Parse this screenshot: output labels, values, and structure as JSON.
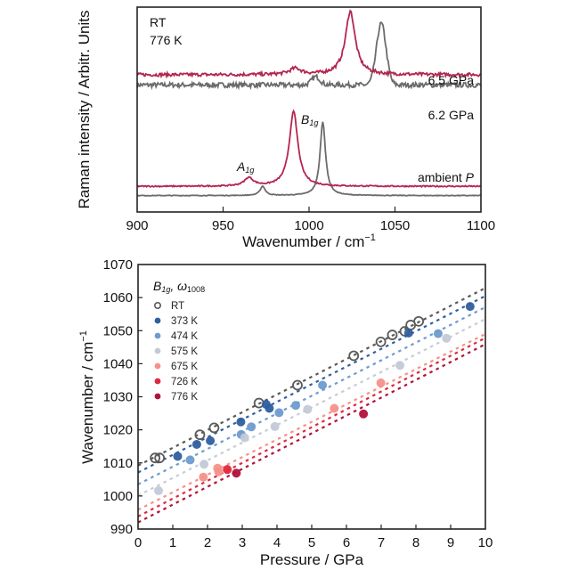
{
  "chart_data": [
    {
      "type": "line",
      "title": "",
      "xlabel": "Wavenumber / cm",
      "xlabel_sup": "−1",
      "ylabel": "Raman intensity / Arbitr. Units",
      "xlim": [
        900,
        1100
      ],
      "xticks": [
        900,
        950,
        1000,
        1050,
        1100
      ],
      "grid": false,
      "legend": {
        "placement": "top-left",
        "entries": [
          {
            "label": "RT",
            "color": "#6b6b6b"
          },
          {
            "label": "776 K",
            "color": "#b3264f"
          }
        ]
      },
      "colors": {
        "RT": "#6b6b6b",
        "hot": "#b3264f"
      },
      "series": [
        {
          "name": "RT, 6.2 GPa",
          "color_key": "RT",
          "offset": 0.62,
          "noise": 0.012,
          "peaks": [
            {
              "center": 1042,
              "height": 0.3,
              "width": 2.8,
              "shape": "gauss"
            },
            {
              "center": 1004,
              "height": 0.04,
              "width": 2.5,
              "shape": "gauss"
            }
          ]
        },
        {
          "name": "776 K, 6.5 GPa",
          "color_key": "hot",
          "offset": 0.67,
          "noise": 0.008,
          "peaks": [
            {
              "center": 1024,
              "height": 0.31,
              "width": 3.4,
              "shape": "lorentz"
            },
            {
              "center": 992,
              "height": 0.03,
              "width": 4.0,
              "shape": "lorentz"
            }
          ]
        },
        {
          "name": "RT, ambient P",
          "color_key": "RT",
          "offset": 0.08,
          "noise": 0.0015,
          "peaks": [
            {
              "center": 1008,
              "height": 0.36,
              "width": 1.9,
              "shape": "lorentz"
            },
            {
              "center": 973,
              "height": 0.045,
              "width": 1.8,
              "shape": "lorentz"
            }
          ]
        },
        {
          "name": "776 K, ambient P",
          "color_key": "hot",
          "offset": 0.125,
          "noise": 0.003,
          "peaks": [
            {
              "center": 991,
              "height": 0.365,
              "width": 3.0,
              "shape": "lorentz"
            },
            {
              "center": 965,
              "height": 0.04,
              "width": 3.2,
              "shape": "lorentz"
            }
          ]
        }
      ],
      "annotations": [
        {
          "text": "6.5 GPa",
          "color_key": "hot"
        },
        {
          "text": "6.2 GPa",
          "color_key": "RT"
        },
        {
          "text": "ambient ",
          "italic_suffix": "P",
          "color": "#111111"
        },
        {
          "mode": "A",
          "sub": "1g"
        },
        {
          "mode": "B",
          "sub": "1g"
        }
      ]
    },
    {
      "type": "scatter",
      "title": "",
      "xlabel": "Pressure / GPa",
      "ylabel": "Wavenumber / cm",
      "ylabel_sup": "−1",
      "xlim": [
        0,
        10
      ],
      "ylim": [
        990,
        1070
      ],
      "xticks": [
        0,
        1,
        2,
        3,
        4,
        5,
        6,
        7,
        8,
        9,
        10
      ],
      "yticks": [
        990,
        1000,
        1010,
        1020,
        1030,
        1040,
        1050,
        1060,
        1070
      ],
      "grid": false,
      "legend": {
        "placement": "top-left",
        "title_mode": "B",
        "title_sub": "1g",
        "title_suffix": ", ω",
        "title_suffix_sub": "1008"
      },
      "series": [
        {
          "name": "RT",
          "color": "#5a5a5a",
          "open": true,
          "fit": [
            1009.2,
            1062.9
          ],
          "points": [
            [
              0.49,
              1011.5
            ],
            [
              0.62,
              1011.5
            ],
            [
              1.78,
              1018.5
            ],
            [
              2.19,
              1020.6
            ],
            [
              3.48,
              1028.1
            ],
            [
              4.59,
              1033.5
            ],
            [
              6.21,
              1042.4
            ],
            [
              6.99,
              1046.6
            ],
            [
              7.32,
              1048.7
            ],
            [
              7.68,
              1049.8
            ],
            [
              7.85,
              1051.7
            ],
            [
              8.08,
              1052.8
            ]
          ]
        },
        {
          "name": "373 K",
          "color": "#2f5f9e",
          "open": false,
          "fit": [
            1007.1,
            1060.5
          ],
          "points": [
            [
              1.14,
              1012.0
            ],
            [
              1.69,
              1015.6
            ],
            [
              2.08,
              1016.7
            ],
            [
              2.96,
              1022.4
            ],
            [
              3.69,
              1027.7
            ],
            [
              3.78,
              1026.5
            ],
            [
              7.79,
              1049.3
            ],
            [
              9.56,
              1057.3
            ]
          ]
        },
        {
          "name": "474 K",
          "color": "#6f9bcf",
          "open": false,
          "fit": [
            1003.5,
            1057.1
          ],
          "points": [
            [
              1.5,
              1010.9
            ],
            [
              2.97,
              1018.6
            ],
            [
              3.26,
              1020.9
            ],
            [
              4.06,
              1025.2
            ],
            [
              4.54,
              1027.4
            ],
            [
              5.31,
              1033.5
            ],
            [
              8.64,
              1049.1
            ]
          ]
        },
        {
          "name": "575 K",
          "color": "#c3c9d6",
          "open": false,
          "fit": [
            1000.1,
            1053.5
          ],
          "points": [
            [
              0.59,
              1001.6
            ],
            [
              1.9,
              1009.6
            ],
            [
              3.07,
              1017.6
            ],
            [
              3.94,
              1021.0
            ],
            [
              4.88,
              1026.2
            ],
            [
              7.54,
              1039.5
            ],
            [
              8.88,
              1047.7
            ]
          ]
        },
        {
          "name": "675 K",
          "color": "#f4928a",
          "open": false,
          "fit": [
            995.8,
            1049.0
          ],
          "points": [
            [
              1.88,
              1005.7
            ],
            [
              2.29,
              1008.4
            ],
            [
              2.32,
              1007.3
            ],
            [
              5.65,
              1026.5
            ],
            [
              6.99,
              1034.2
            ]
          ]
        },
        {
          "name": "726 K",
          "color": "#e0283c",
          "open": false,
          "fit": [
            993.8,
            1047.8
          ],
          "points": [
            [
              2.57,
              1008.0
            ]
          ]
        },
        {
          "name": "776 K",
          "color": "#b0123a",
          "open": false,
          "fit": [
            992.0,
            1045.9
          ],
          "points": [
            [
              2.83,
              1006.9
            ],
            [
              6.49,
              1024.8
            ]
          ]
        }
      ]
    }
  ]
}
